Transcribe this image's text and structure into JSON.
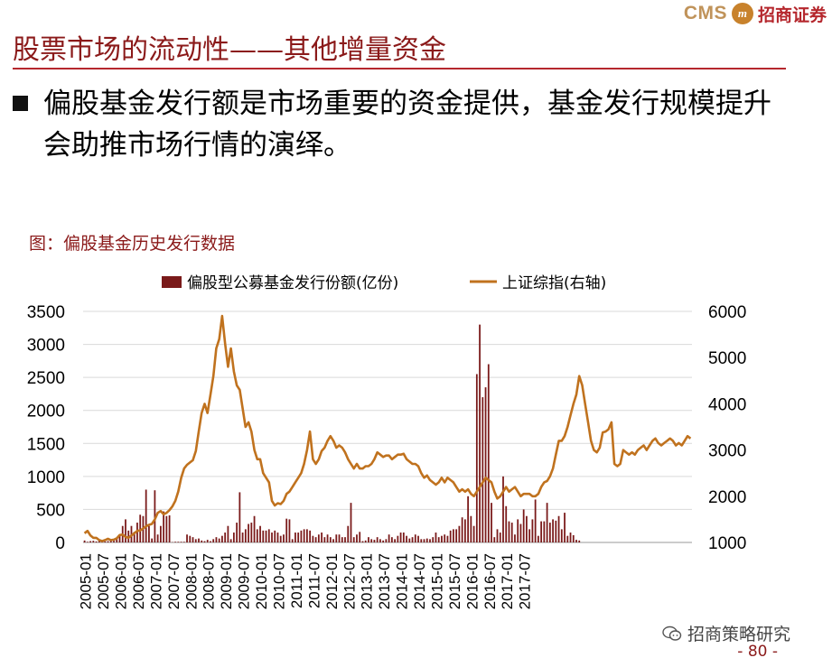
{
  "header": {
    "logo_text": "CMS",
    "logo_company": "招商证券",
    "title": "股票市场的流动性——其他增量资金"
  },
  "bullet": {
    "text": "偏股基金发行额是市场重要的资金提供，基金发行规模提升会助推市场行情的演绎。"
  },
  "figure": {
    "caption": "图：偏股基金历史发行数据"
  },
  "footer": {
    "wechat_label": "招商策略研究",
    "page_number": "- 80 -"
  },
  "colors": {
    "bar": "#7a1a1a",
    "line": "#c0721e",
    "accent": "#b5272d",
    "title": "#8b1a1a"
  },
  "chart_data": {
    "type": "bar",
    "x_ticks": [
      "2005-01",
      "2005-07",
      "2006-01",
      "2006-07",
      "2007-01",
      "2007-07",
      "2008-01",
      "2008-07",
      "2009-01",
      "2009-07",
      "2010-01",
      "2010-07",
      "2011-01",
      "2011-07",
      "2012-01",
      "2012-07",
      "2013-01",
      "2013-07",
      "2014-01",
      "2014-07",
      "2015-01",
      "2015-07",
      "2016-01",
      "2016-07",
      "2017-01",
      "2017-07"
    ],
    "y_left": {
      "min": 0,
      "max": 3500,
      "ticks": [
        0,
        500,
        1000,
        1500,
        2000,
        2500,
        3000,
        3500
      ]
    },
    "y_right": {
      "min": 1000,
      "max": 6000,
      "ticks": [
        1000,
        2000,
        3000,
        4000,
        5000,
        6000
      ]
    },
    "grid": true,
    "legend_position": "top",
    "series": [
      {
        "name": "偏股型公募基金发行份额(亿份)",
        "type": "bar",
        "axis": "left",
        "start": "2005-01",
        "values": [
          30,
          10,
          20,
          25,
          15,
          20,
          10,
          15,
          20,
          40,
          25,
          60,
          100,
          250,
          350,
          180,
          250,
          160,
          300,
          420,
          400,
          800,
          250,
          60,
          790,
          120,
          250,
          470,
          400,
          410,
          5,
          10,
          10,
          10,
          10,
          120,
          100,
          80,
          50,
          60,
          30,
          20,
          40,
          20,
          50,
          80,
          60,
          100,
          150,
          250,
          50,
          150,
          300,
          760,
          150,
          200,
          280,
          300,
          400,
          200,
          250,
          180,
          180,
          200,
          150,
          180,
          150,
          100,
          120,
          360,
          350,
          50,
          150,
          150,
          180,
          200,
          200,
          180,
          100,
          80,
          120,
          150,
          80,
          120,
          80,
          50,
          120,
          120,
          80,
          80,
          250,
          600,
          80,
          120,
          160,
          20,
          30,
          80,
          50,
          40,
          80,
          50,
          30,
          50,
          120,
          80,
          50,
          100,
          150,
          150,
          100,
          60,
          80,
          120,
          100,
          50,
          50,
          60,
          50,
          80,
          150,
          80,
          100,
          120,
          100,
          180,
          200,
          200,
          250,
          380,
          350,
          700,
          400,
          250,
          2550,
          3300,
          2200,
          2350,
          2700,
          600,
          80,
          200,
          150,
          1000,
          550,
          320,
          300,
          120,
          350,
          280,
          500,
          400,
          200,
          350,
          650,
          100,
          320,
          320,
          600,
          300,
          350,
          330,
          400,
          200,
          450,
          100,
          150,
          110,
          40,
          30
        ]
      },
      {
        "name": "上证综指(右轴)",
        "type": "line",
        "axis": "right",
        "start": "2005-01",
        "values": [
          1200,
          1250,
          1150,
          1100,
          1100,
          1050,
          1030,
          1050,
          1080,
          1050,
          1060,
          1090,
          1160,
          1170,
          1120,
          1100,
          1150,
          1200,
          1250,
          1260,
          1300,
          1350,
          1380,
          1400,
          1500,
          1640,
          1680,
          1610,
          1640,
          1700,
          1780,
          1900,
          2100,
          2400,
          2600,
          2680,
          2730,
          2780,
          2980,
          3400,
          3800,
          4000,
          3800,
          4200,
          4600,
          5200,
          5400,
          5900,
          5300,
          4800,
          5200,
          4700,
          4400,
          4300,
          3900,
          3500,
          3600,
          3400,
          3000,
          2800,
          2800,
          2500,
          2400,
          2300,
          1900,
          1800,
          1850,
          1830,
          1900,
          2050,
          2100,
          2200,
          2300,
          2400,
          2500,
          2700,
          3000,
          3400,
          2800,
          2700,
          2800,
          2980,
          3050,
          3200,
          3300,
          3200,
          3050,
          3100,
          3050,
          2950,
          2800,
          2700,
          2600,
          2700,
          2600,
          2600,
          2650,
          2650,
          2700,
          2800,
          2950,
          2900,
          2850,
          2880,
          2880,
          2800,
          2850,
          2900,
          2900,
          2920,
          2800,
          2750,
          2700,
          2700,
          2650,
          2500,
          2400,
          2450,
          2350,
          2300,
          2250,
          2300,
          2400,
          2300,
          2400,
          2350,
          2300,
          2200,
          2100,
          2150,
          2100,
          2150,
          2050,
          2000,
          2100,
          2200,
          2300,
          2400,
          2350,
          2300,
          2100,
          1950,
          2000,
          2100,
          2200,
          2100,
          2150,
          2200,
          2100,
          2000,
          2050,
          2050,
          2050,
          2000,
          2000,
          2050,
          2200,
          2300,
          2330,
          2430,
          2600,
          2900,
          3200,
          3200,
          3300,
          3500,
          3750,
          4000,
          4200,
          4600,
          4400,
          4000,
          3600,
          3200,
          3000,
          2950,
          3050,
          3380,
          3400,
          3450,
          3600,
          2700,
          2650,
          2700,
          3000,
          2950,
          2900,
          2950,
          2900,
          3000,
          3050,
          3100,
          3000,
          3100,
          3200,
          3250,
          3150,
          3100,
          3150,
          3200,
          3250,
          3200,
          3100,
          3150,
          3100,
          3200,
          3300,
          3250
        ]
      }
    ]
  }
}
